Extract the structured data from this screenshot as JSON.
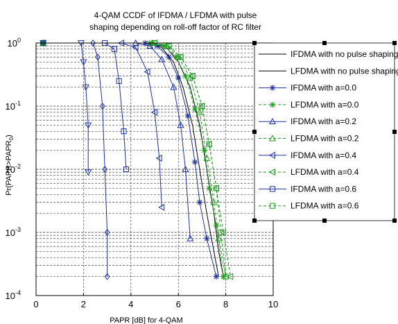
{
  "chart_data": {
    "type": "line",
    "title_line1": "4-QAM CCDF of IFDMA / LFDMA with pulse",
    "title_line2": "shaping depending on roll-off factor of RC filter",
    "xlabel": "PAPR [dB] for 4-QAM",
    "ylabel": "Pr(PAPR>PAPR",
    "ylabel_sub": "0",
    "ylabel_end": ")",
    "xlim": [
      0,
      10
    ],
    "ylim": [
      0.0001,
      1
    ],
    "yscale": "log",
    "x_ticks": [
      "0",
      "2",
      "4",
      "6",
      "8",
      "10"
    ],
    "y_ticks": [
      {
        "base": "10",
        "exp": "0"
      },
      {
        "base": "10",
        "exp": "-1"
      },
      {
        "base": "10",
        "exp": "-2"
      },
      {
        "base": "10",
        "exp": "-3"
      },
      {
        "base": "10",
        "exp": "-4"
      }
    ],
    "grid": true,
    "legend_position": "right",
    "series": [
      {
        "name": "IFDMA with no pulse shaping",
        "color": "#000000",
        "style": "solid",
        "marker": "none",
        "points": [
          [
            0,
            1
          ],
          [
            4.6,
            1
          ],
          [
            5.3,
            0.85
          ],
          [
            5.8,
            0.5
          ],
          [
            6.2,
            0.2
          ],
          [
            6.6,
            0.05
          ],
          [
            6.9,
            0.01
          ],
          [
            7.2,
            0.002
          ],
          [
            7.5,
            0.0005
          ],
          [
            7.7,
            0.0002
          ]
        ]
      },
      {
        "name": "LFDMA with no pulse shaping",
        "color": "#000000",
        "style": "solid",
        "marker": "none",
        "points": [
          [
            0,
            1
          ],
          [
            4.8,
            1
          ],
          [
            5.5,
            0.85
          ],
          [
            6.0,
            0.5
          ],
          [
            6.5,
            0.2
          ],
          [
            6.9,
            0.05
          ],
          [
            7.2,
            0.01
          ],
          [
            7.5,
            0.002
          ],
          [
            7.7,
            0.0005
          ],
          [
            7.9,
            0.0002
          ]
        ]
      },
      {
        "name": "IFDMA with a=0.0",
        "color": "#1c2fa0",
        "style": "solid",
        "marker": "star",
        "points": [
          [
            0.3,
            1
          ],
          [
            4.6,
            1
          ],
          [
            5.1,
            0.9
          ],
          [
            5.6,
            0.6
          ],
          [
            6.0,
            0.28
          ],
          [
            6.4,
            0.07
          ],
          [
            6.7,
            0.013
          ],
          [
            6.9,
            0.003
          ],
          [
            7.2,
            0.0008
          ],
          [
            7.6,
            0.0002
          ]
        ]
      },
      {
        "name": "LFDMA with a=0.0",
        "color": "#1a9a1a",
        "style": "dashed",
        "marker": "star",
        "points": [
          [
            0.3,
            1
          ],
          [
            4.8,
            1
          ],
          [
            5.4,
            0.9
          ],
          [
            5.9,
            0.6
          ],
          [
            6.3,
            0.3
          ],
          [
            6.7,
            0.09
          ],
          [
            7.1,
            0.02
          ],
          [
            7.3,
            0.005
          ],
          [
            7.6,
            0.0013
          ],
          [
            7.9,
            0.0002
          ]
        ]
      },
      {
        "name": "IFDMA with a=0.2",
        "color": "#1c2fa0",
        "style": "solid",
        "marker": "triangle-up",
        "points": [
          [
            0.3,
            1
          ],
          [
            4.2,
            1
          ],
          [
            4.8,
            0.9
          ],
          [
            5.3,
            0.55
          ],
          [
            5.8,
            0.2
          ],
          [
            6.1,
            0.05
          ],
          [
            6.3,
            0.01
          ],
          [
            6.5,
            0.0008
          ]
        ]
      },
      {
        "name": "LFDMA with a=0.2",
        "color": "#1a9a1a",
        "style": "dashed",
        "marker": "triangle-up",
        "points": [
          [
            0.3,
            1
          ],
          [
            4.9,
            1
          ],
          [
            5.5,
            0.9
          ],
          [
            6.0,
            0.6
          ],
          [
            6.5,
            0.28
          ],
          [
            6.9,
            0.08
          ],
          [
            7.2,
            0.015
          ],
          [
            7.5,
            0.003
          ],
          [
            7.7,
            0.0008
          ],
          [
            8.0,
            0.0002
          ]
        ]
      },
      {
        "name": "IFDMA with a=0.4",
        "color": "#1c2fa0",
        "style": "solid",
        "marker": "triangle-left",
        "points": [
          [
            0.3,
            1
          ],
          [
            3.6,
            1
          ],
          [
            4.2,
            0.85
          ],
          [
            4.7,
            0.35
          ],
          [
            5.0,
            0.08
          ],
          [
            5.2,
            0.015
          ],
          [
            5.3,
            0.0025
          ]
        ]
      },
      {
        "name": "LFDMA with a=0.4",
        "color": "#1a9a1a",
        "style": "dashed",
        "marker": "triangle-left",
        "points": [
          [
            0.3,
            1
          ],
          [
            5.0,
            1
          ],
          [
            5.6,
            0.9
          ],
          [
            6.1,
            0.6
          ],
          [
            6.6,
            0.3
          ],
          [
            7.0,
            0.1
          ],
          [
            7.3,
            0.025
          ],
          [
            7.6,
            0.005
          ],
          [
            7.9,
            0.001
          ],
          [
            8.2,
            0.0002
          ]
        ]
      },
      {
        "name": "IFDMA with a=0.6",
        "color": "#1c2fa0",
        "style": "solid",
        "marker": "square",
        "points": [
          [
            0.3,
            1
          ],
          [
            2.9,
            1
          ],
          [
            3.3,
            0.8
          ],
          [
            3.5,
            0.25
          ],
          [
            3.7,
            0.04
          ],
          [
            3.8,
            0.01
          ]
        ]
      },
      {
        "name": "LFDMA with a=0.6",
        "color": "#1a9a1a",
        "style": "dashed",
        "marker": "square",
        "points": [
          [
            0.3,
            1
          ],
          [
            5.0,
            1
          ],
          [
            5.6,
            0.9
          ],
          [
            6.1,
            0.6
          ],
          [
            6.6,
            0.3
          ],
          [
            7.0,
            0.1
          ],
          [
            7.3,
            0.025
          ],
          [
            7.6,
            0.005
          ],
          [
            7.8,
            0.001
          ],
          [
            8.0,
            0.0002
          ]
        ]
      },
      {
        "name": "",
        "color": "#1c2fa0",
        "style": "solid",
        "marker": "triangle-down",
        "points": [
          [
            0.3,
            1
          ],
          [
            1.9,
            1
          ],
          [
            2.0,
            0.5
          ],
          [
            2.1,
            0.2
          ],
          [
            2.2,
            0.05
          ],
          [
            2.2,
            0.009
          ]
        ]
      },
      {
        "name": "",
        "color": "#1c2fa0",
        "style": "solid",
        "marker": "diamond",
        "points": [
          [
            0.3,
            1
          ],
          [
            2.4,
            1
          ],
          [
            2.6,
            0.6
          ],
          [
            2.8,
            0.1
          ],
          [
            2.9,
            0.01
          ],
          [
            3.0,
            0.001
          ],
          [
            3.0,
            0.0002
          ]
        ]
      }
    ]
  }
}
